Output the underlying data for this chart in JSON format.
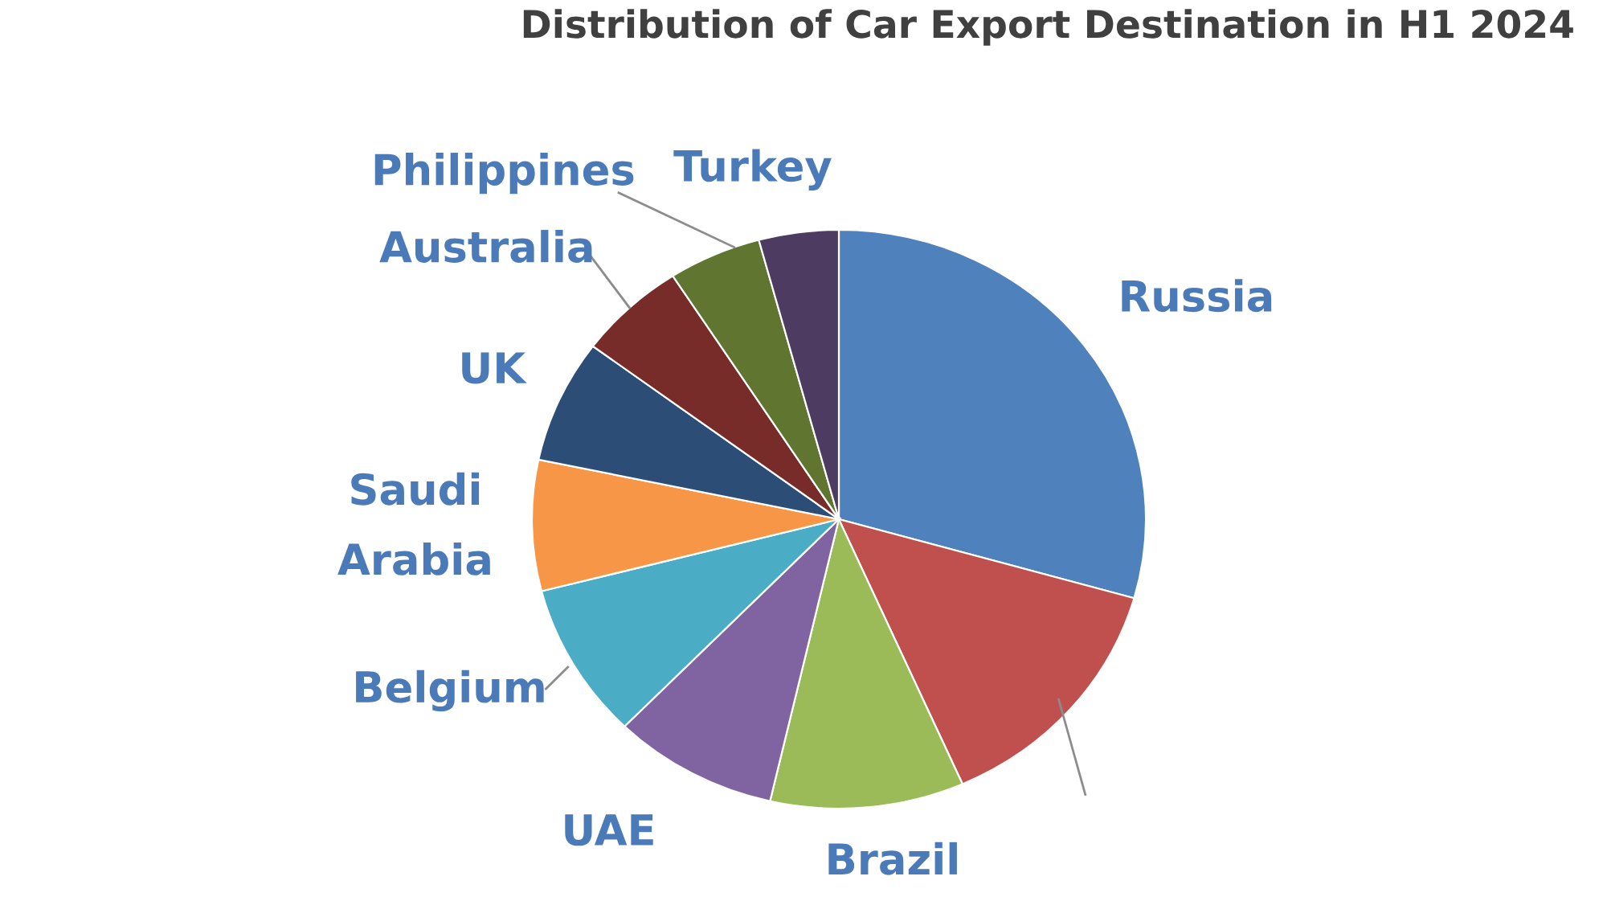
{
  "chart_data": {
    "type": "pie",
    "title": "Distribution of Car Export Destination in H1 2024",
    "categories": [
      "Russia",
      null,
      "Brazil",
      "UAE",
      "Belgium",
      "Saudi Arabia",
      "UK",
      "Australia",
      "Philippines",
      "Turkey"
    ],
    "values": [
      29.4,
      14.0,
      10.2,
      8.7,
      8.7,
      7.3,
      6.9,
      5.7,
      4.9,
      4.2
    ],
    "colors": [
      "#4f81bd",
      "#c0504d",
      "#9bbb59",
      "#8064a2",
      "#4bacc6",
      "#f79646",
      "#2c4d75",
      "#772c2a",
      "#5f7530",
      "#4d3b62"
    ]
  }
}
